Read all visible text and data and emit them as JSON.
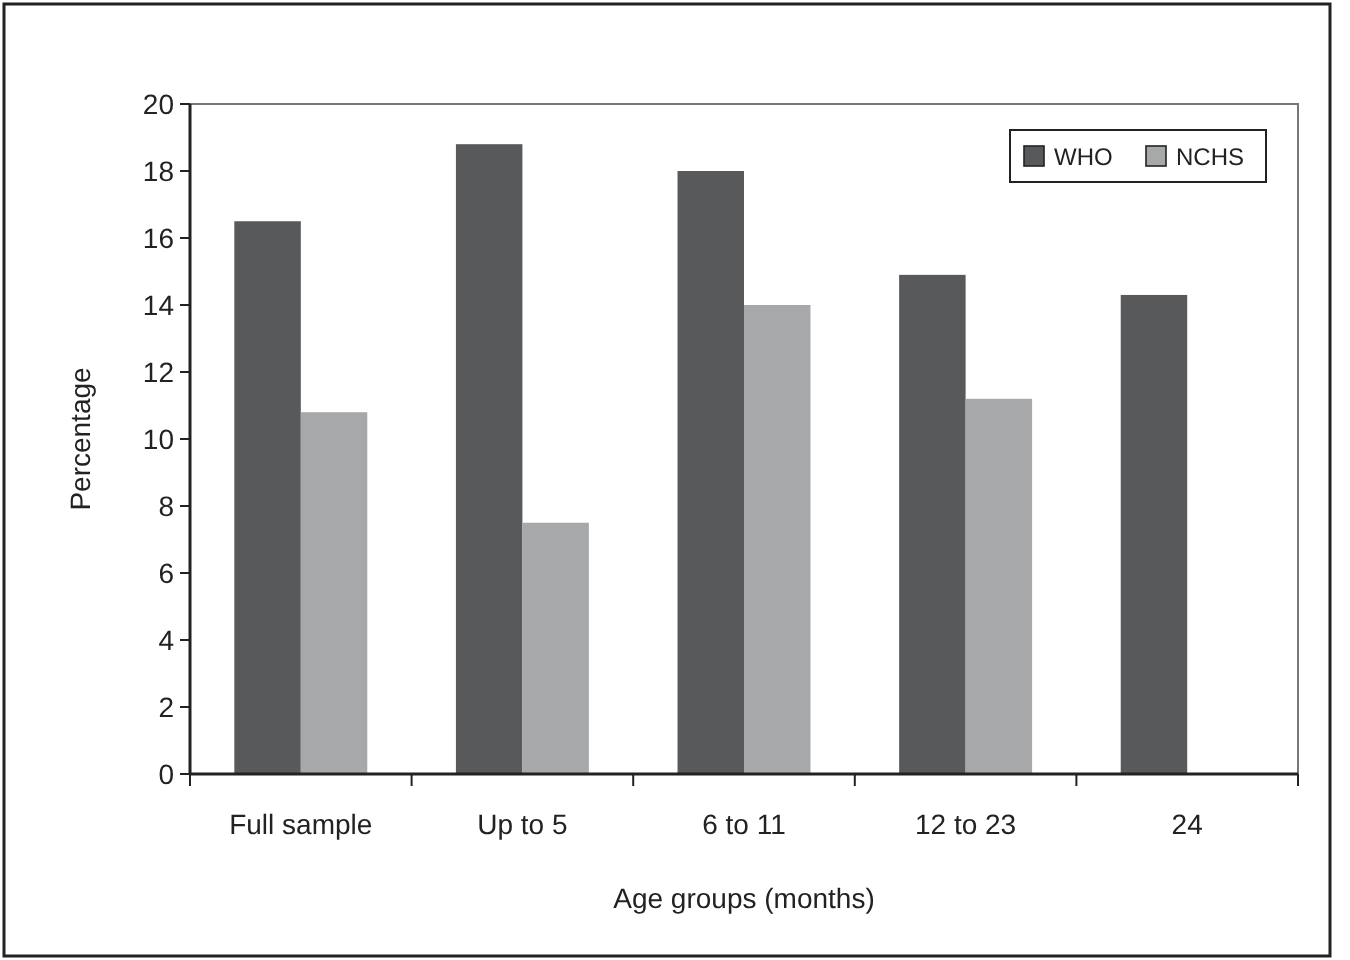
{
  "chart_data": {
    "type": "bar",
    "xlabel": "Age groups (months)",
    "ylabel": "Percentage",
    "categories": [
      "Full sample",
      "Up to 5",
      "6 to 11",
      "12 to 23",
      "24"
    ],
    "series": [
      {
        "name": "WHO",
        "color": "#58595b",
        "values": [
          16.5,
          18.8,
          18.0,
          14.9,
          14.3
        ]
      },
      {
        "name": "NCHS",
        "color": "#a7a8aa",
        "values": [
          10.8,
          7.5,
          14.0,
          11.2,
          null
        ]
      }
    ],
    "ylim": [
      0,
      20
    ],
    "yticks": [
      0,
      2,
      4,
      6,
      8,
      10,
      12,
      14,
      16,
      18,
      20
    ],
    "grid": false,
    "legend": "top right"
  }
}
